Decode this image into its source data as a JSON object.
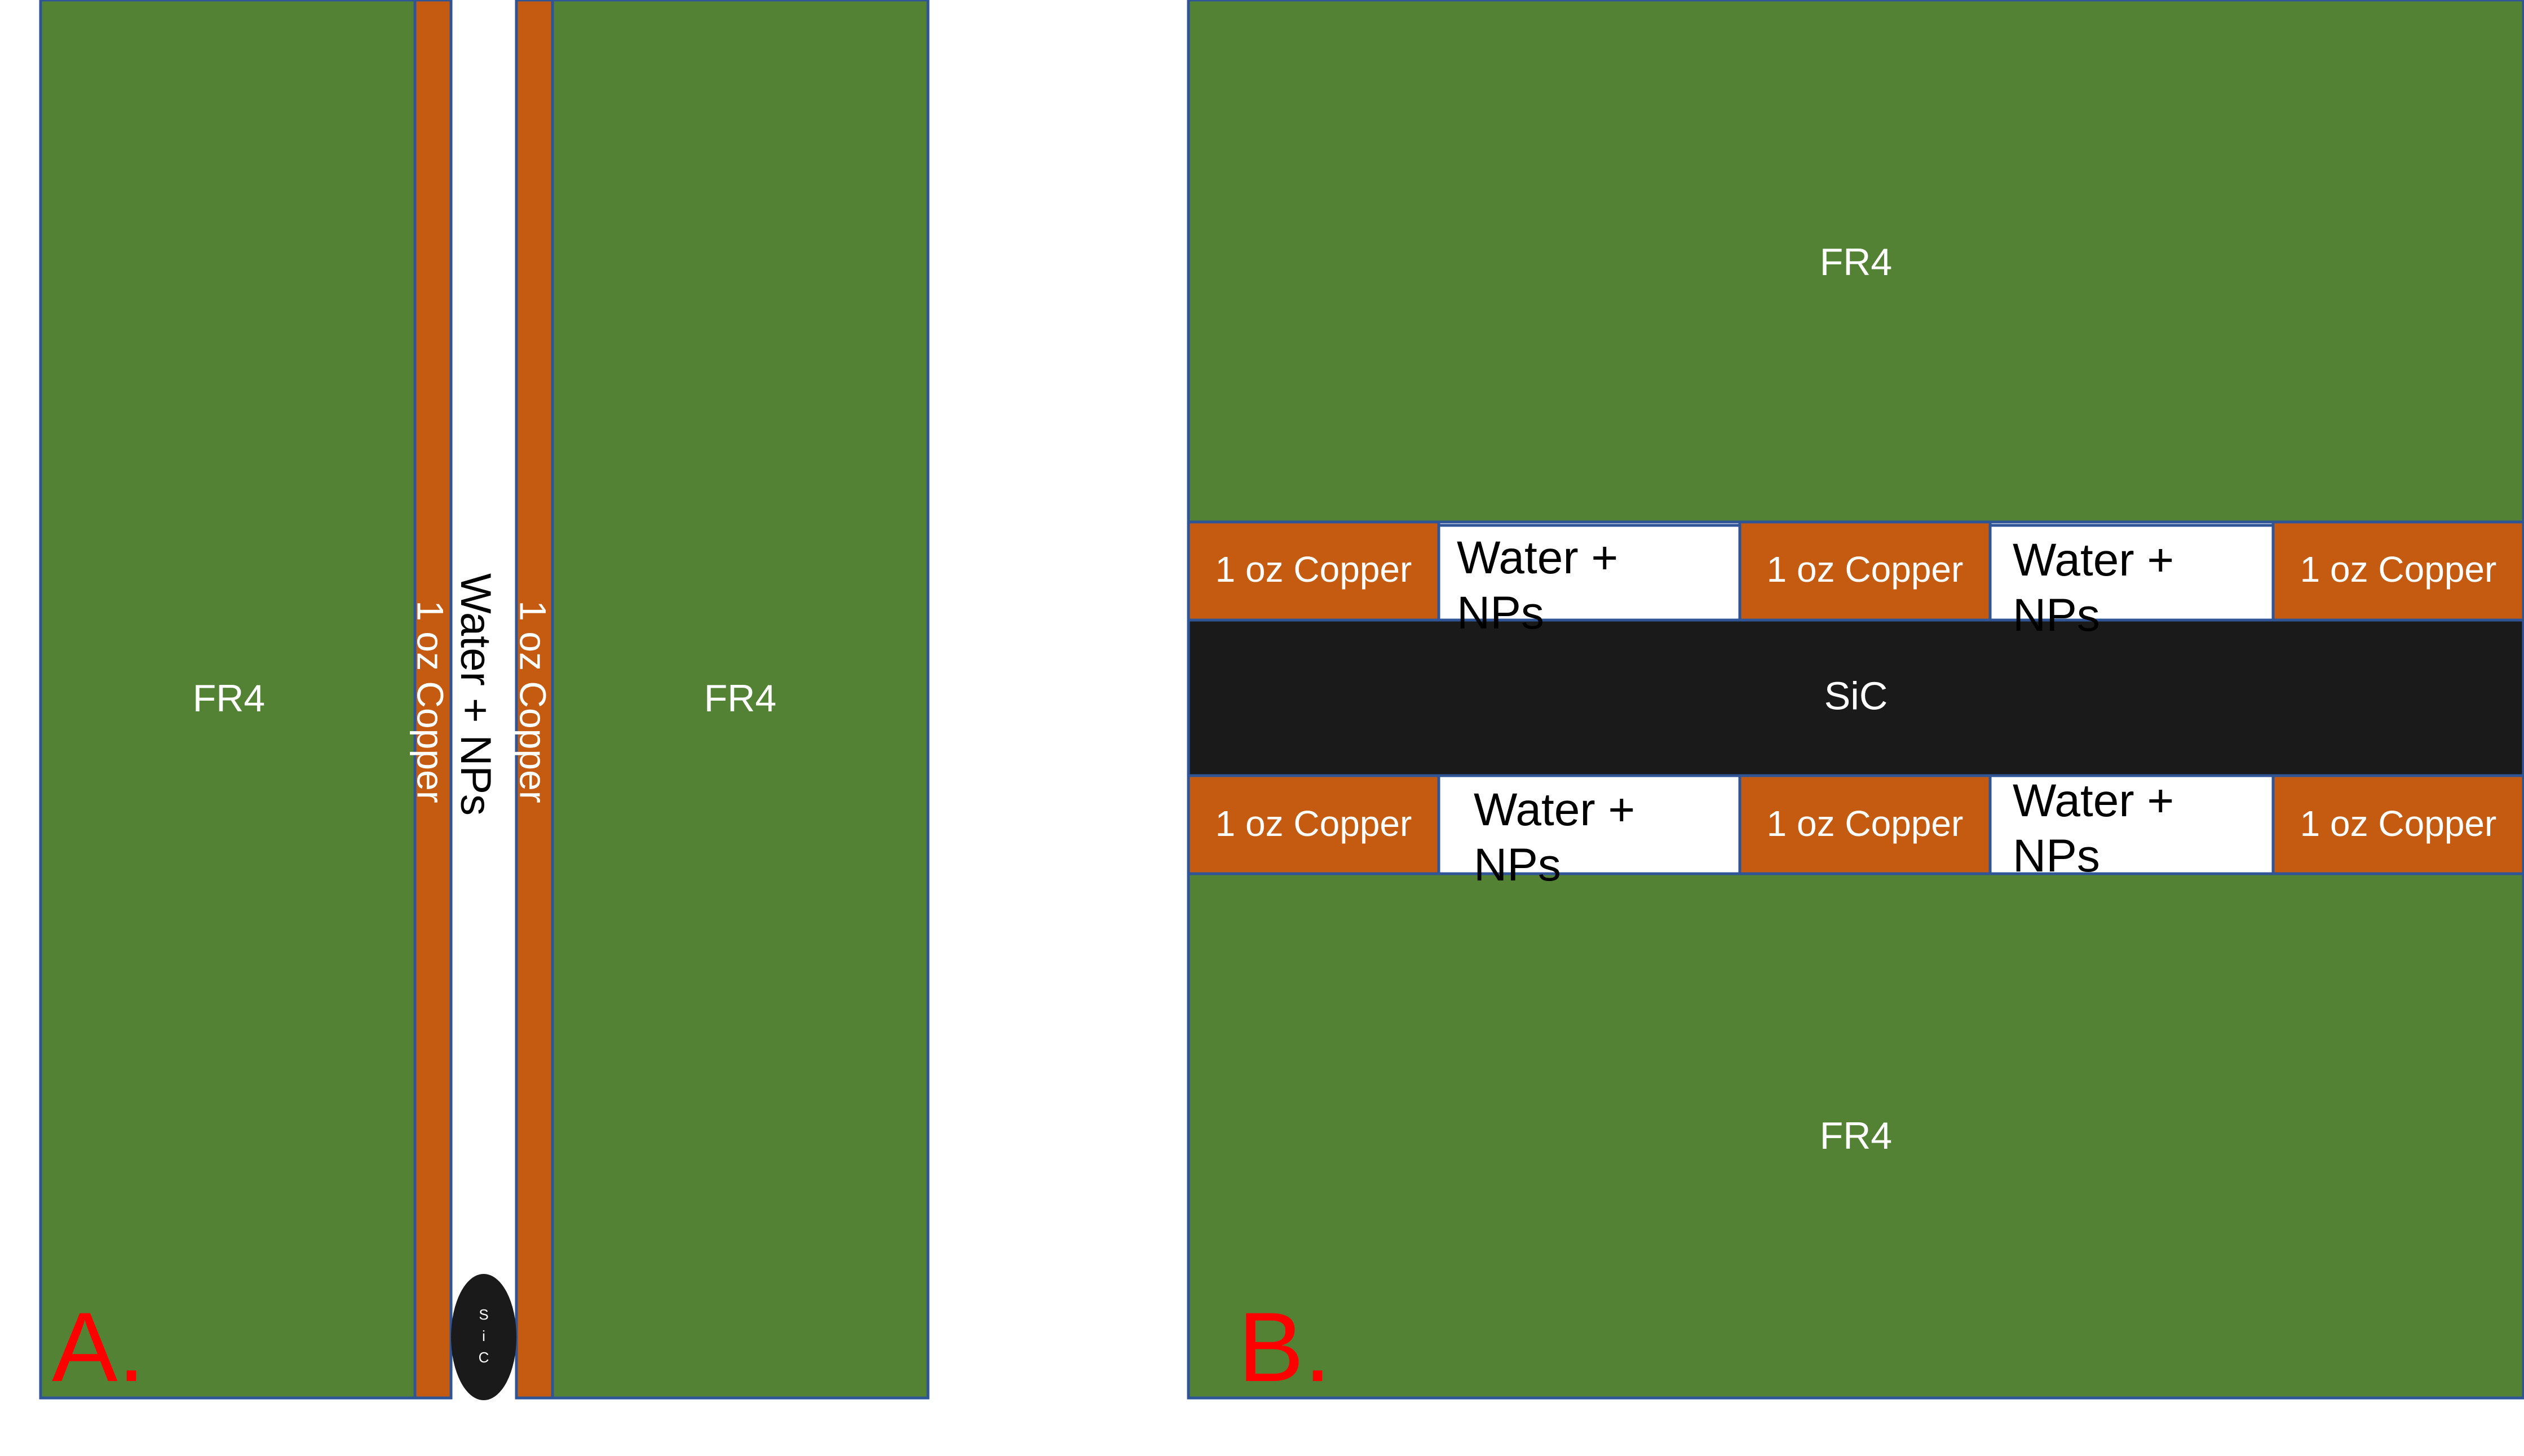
{
  "colors": {
    "fr4": "#548235",
    "copper": "#C55A11",
    "water": "#FFFFFF",
    "sic": "#1A1A1A",
    "outline": "#2F5597",
    "panel_letter": "#FF0000"
  },
  "panel_a": {
    "letter": "A.",
    "fr4_left": "FR4",
    "fr4_right": "FR4",
    "copper_left": "1 oz Copper",
    "copper_right": "1 oz Copper",
    "water": "Water + NPs",
    "sic_chars": [
      "S",
      "i",
      "C"
    ]
  },
  "panel_b": {
    "letter": "B.",
    "fr4_top": "FR4",
    "fr4_bottom": "FR4",
    "sic": "SiC",
    "top_row": {
      "copper_1": "1 oz Copper",
      "water_1_line1": "Water +",
      "water_1_line2": "NPs",
      "copper_2": "1 oz Copper",
      "water_2_line1": "Water +",
      "water_2_line2": "NPs",
      "copper_3": "1 oz Copper"
    },
    "bottom_row": {
      "copper_1": "1 oz Copper",
      "water_1_line1": "Water +",
      "water_1_line2": "NPs",
      "copper_2": "1 oz Copper",
      "water_2_line1": "Water +",
      "water_2_line2": "NPs",
      "copper_3": "1 oz Copper"
    }
  }
}
